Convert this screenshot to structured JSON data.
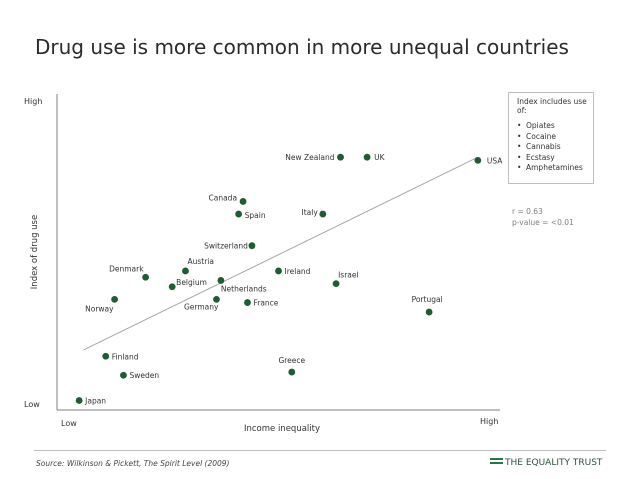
{
  "title": "Drug use is more common in more unequal countries",
  "chart_data": {
    "type": "scatter",
    "title": "Drug use is more common in more unequal countries",
    "xlabel": "Income inequality",
    "ylabel": "Index of drug use",
    "x_low_label": "Low",
    "x_high_label": "High",
    "y_low_label": "Low",
    "y_high_label": "High",
    "xlim": [
      0,
      100
    ],
    "ylim": [
      0,
      100
    ],
    "points": [
      {
        "label": "Japan",
        "x": 5,
        "y": 3
      },
      {
        "label": "Finland",
        "x": 11,
        "y": 17
      },
      {
        "label": "Sweden",
        "x": 15,
        "y": 11
      },
      {
        "label": "Norway",
        "x": 13,
        "y": 35
      },
      {
        "label": "Denmark",
        "x": 20,
        "y": 42
      },
      {
        "label": "Belgium",
        "x": 26,
        "y": 39
      },
      {
        "label": "Austria",
        "x": 29,
        "y": 44
      },
      {
        "label": "Germany",
        "x": 36,
        "y": 35
      },
      {
        "label": "Netherlands",
        "x": 37,
        "y": 41
      },
      {
        "label": "Switzerland",
        "x": 44,
        "y": 52
      },
      {
        "label": "Canada",
        "x": 42,
        "y": 66
      },
      {
        "label": "Spain",
        "x": 41,
        "y": 62
      },
      {
        "label": "France",
        "x": 43,
        "y": 34
      },
      {
        "label": "Ireland",
        "x": 50,
        "y": 44
      },
      {
        "label": "Greece",
        "x": 53,
        "y": 12
      },
      {
        "label": "Italy",
        "x": 60,
        "y": 62
      },
      {
        "label": "Israel",
        "x": 63,
        "y": 40
      },
      {
        "label": "New Zealand",
        "x": 64,
        "y": 80
      },
      {
        "label": "UK",
        "x": 70,
        "y": 80
      },
      {
        "label": "Portugal",
        "x": 84,
        "y": 31
      },
      {
        "label": "USA",
        "x": 95,
        "y": 79
      }
    ],
    "trendline": {
      "x": [
        6,
        95
      ],
      "y": [
        19,
        80
      ]
    },
    "annotations": [
      "r = 0.63",
      "p-value = <0.01"
    ],
    "legend": {
      "title": "Index includes use of:",
      "items": [
        "Opiates",
        "Cocaine",
        "Cannabis",
        "Ecstasy",
        "Amphetamines"
      ]
    },
    "colors": {
      "point": "#1e5c33",
      "axis": "#7f7f7f",
      "trend": "#a6a6a6",
      "text": "#333333"
    }
  },
  "source": "Source: Wilkinson & Pickett, The Spirit Level (2009)",
  "brand": "THE EQUALITY TRUST"
}
